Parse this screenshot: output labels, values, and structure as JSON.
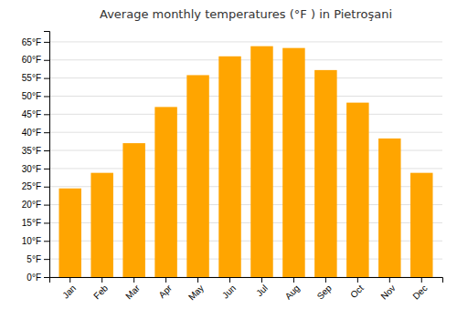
{
  "chart_data": {
    "type": "bar",
    "title": "Average monthly temperatures (°F ) in Pietroşani",
    "categories": [
      "Jan",
      "Feb",
      "Mar",
      "Apr",
      "May",
      "Jun",
      "Jul",
      "Aug",
      "Sep",
      "Oct",
      "Nov",
      "Dec"
    ],
    "values": [
      24.5,
      28.8,
      37.0,
      47.0,
      55.8,
      61.0,
      63.8,
      63.3,
      57.2,
      48.2,
      38.3,
      28.8
    ],
    "color": "#FFA500",
    "ylim": [
      0,
      68
    ],
    "yticks": [
      {
        "value": 0,
        "label": "0°F"
      },
      {
        "value": 5,
        "label": "5°F"
      },
      {
        "value": 10,
        "label": "10°F"
      },
      {
        "value": 15,
        "label": "15°F"
      },
      {
        "value": 20,
        "label": "20°F"
      },
      {
        "value": 25,
        "label": "25°F"
      },
      {
        "value": 30,
        "label": "30°F"
      },
      {
        "value": 35,
        "label": "35°F"
      },
      {
        "value": 40,
        "label": "40°F"
      },
      {
        "value": 45,
        "label": "45°F"
      },
      {
        "value": 50,
        "label": "50°F"
      },
      {
        "value": 55,
        "label": "55°F"
      },
      {
        "value": 60,
        "label": "60°F"
      },
      {
        "value": 65,
        "label": "65°F"
      }
    ],
    "grid": true
  }
}
